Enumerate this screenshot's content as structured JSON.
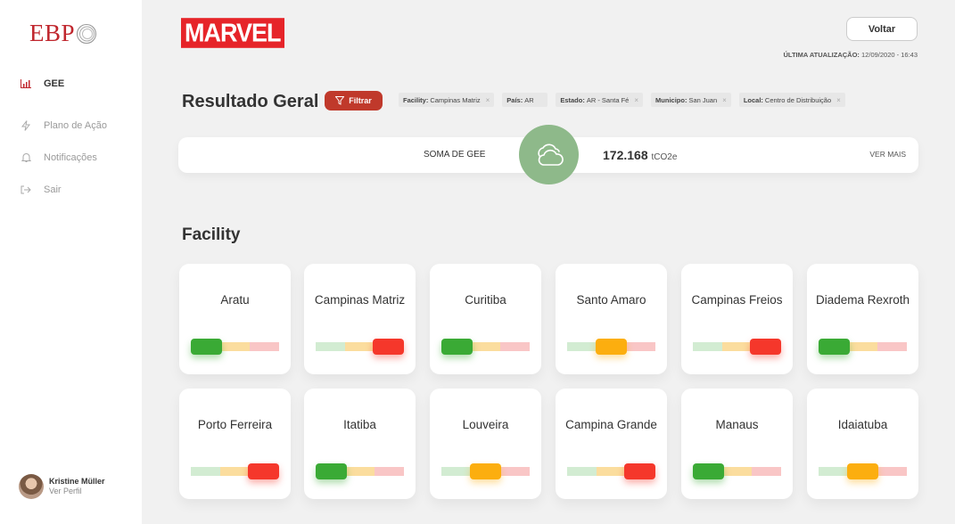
{
  "sidebar": {
    "logo": "EBP",
    "items": [
      {
        "label": "GEE",
        "icon": "bar-chart-icon",
        "active": true
      },
      {
        "label": "Plano de Ação",
        "icon": "lightning-icon",
        "active": false
      },
      {
        "label": "Notificações",
        "icon": "bell-icon",
        "active": false
      },
      {
        "label": "Sair",
        "icon": "logout-icon",
        "active": false
      }
    ],
    "user": {
      "name": "Kristine Müller",
      "link": "Ver Perfil"
    }
  },
  "header": {
    "brand": "MARVEL",
    "back_label": "Voltar",
    "last_update_label": "ÚLTIMA ATUALIZAÇÃO:",
    "last_update_value": "12/09/2020 - 16:43"
  },
  "result": {
    "title": "Resultado Geral",
    "filter_label": "Filtrar",
    "chips": [
      {
        "key": "Facility:",
        "value": "Campinas Matriz"
      },
      {
        "key": "País:",
        "value": "AR"
      },
      {
        "key": "Estado:",
        "value": "AR - Santa Fé"
      },
      {
        "key": "Municipo:",
        "value": "San Juan"
      },
      {
        "key": "Local:",
        "value": "Centro de Distribuição"
      }
    ],
    "summary_label": "SOMA DE GEE",
    "summary_value": "172.168",
    "summary_unit": "tCO2e",
    "see_more": "VER MAIS"
  },
  "facility": {
    "title": "Facility",
    "cards": [
      {
        "name": "Aratu",
        "status": "green"
      },
      {
        "name": "Campinas Matriz",
        "status": "red"
      },
      {
        "name": "Curitiba",
        "status": "green"
      },
      {
        "name": "Santo Amaro",
        "status": "yellow"
      },
      {
        "name": "Campinas Freios",
        "status": "red"
      },
      {
        "name": "Diadema Rexroth",
        "status": "green"
      },
      {
        "name": "Porto Ferreira",
        "status": "red"
      },
      {
        "name": "Itatiba",
        "status": "green"
      },
      {
        "name": "Louveira",
        "status": "yellow"
      },
      {
        "name": "Campina Grande",
        "status": "red"
      },
      {
        "name": "Manaus",
        "status": "green"
      },
      {
        "name": "Idaiatuba",
        "status": "yellow"
      }
    ]
  },
  "colors": {
    "accent_red": "#c0392b",
    "gauge_green": "#3aaa35",
    "gauge_yellow": "#fcae0f",
    "gauge_red": "#f5372b",
    "cloud_green": "#8eb98a"
  }
}
